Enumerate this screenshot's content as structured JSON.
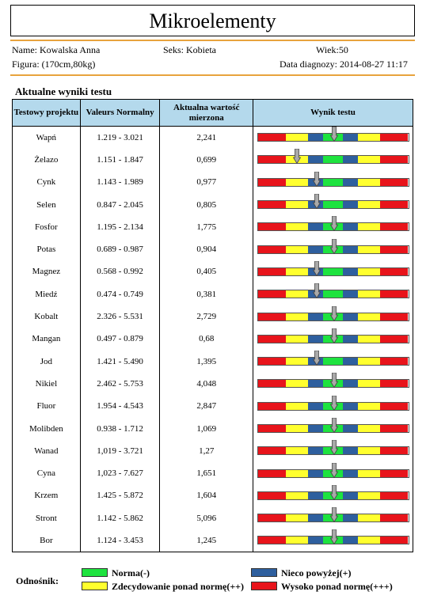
{
  "header": {
    "title": "Mikroelementy",
    "name": "Name: Kowalska Anna",
    "sex": "Seks: Kobieta",
    "age": "Wiek:50",
    "figure": "Figura: (170cm,80kg)",
    "diagnosis_date": "Data diagnozy: 2014-08-27 11:17"
  },
  "section_title": "Aktualne wyniki testu",
  "table": {
    "headers": [
      "Testowy projektu",
      "Valeurs Normalny",
      "Aktualna wartość mierzona",
      "Wynik testu"
    ],
    "rows": [
      {
        "name": "Wapń",
        "range": "1.219 - 3.021",
        "value": "2,241",
        "marker": 0.51
      },
      {
        "name": "Żelazo",
        "range": "1.151 - 1.847",
        "value": "0,699",
        "marker": 0.26
      },
      {
        "name": "Cynk",
        "range": "1.143 - 1.989",
        "value": "0,977",
        "marker": 0.39
      },
      {
        "name": "Selen",
        "range": "0.847 - 2.045",
        "value": "0,805",
        "marker": 0.39
      },
      {
        "name": "Fosfor",
        "range": "1.195 - 2.134",
        "value": "1,775",
        "marker": 0.51
      },
      {
        "name": "Potas",
        "range": "0.689 - 0.987",
        "value": "0,904",
        "marker": 0.51
      },
      {
        "name": "Magnez",
        "range": "0.568 - 0.992",
        "value": "0,405",
        "marker": 0.39
      },
      {
        "name": "Miedź",
        "range": "0.474 - 0.749",
        "value": "0,381",
        "marker": 0.39
      },
      {
        "name": "Kobalt",
        "range": "2.326 - 5.531",
        "value": "2,729",
        "marker": 0.51
      },
      {
        "name": "Mangan",
        "range": "0.497 - 0.879",
        "value": "0,68",
        "marker": 0.51
      },
      {
        "name": "Jod",
        "range": "1.421 - 5.490",
        "value": "1,395",
        "marker": 0.39
      },
      {
        "name": "Nikiel",
        "range": "2.462 - 5.753",
        "value": "4,048",
        "marker": 0.51
      },
      {
        "name": "Fluor",
        "range": "1.954 - 4.543",
        "value": "2,847",
        "marker": 0.51
      },
      {
        "name": "Molibden",
        "range": "0.938 - 1.712",
        "value": "1,069",
        "marker": 0.51
      },
      {
        "name": "Wanad",
        "range": "1,019 - 3.721",
        "value": "1,27",
        "marker": 0.51
      },
      {
        "name": "Cyna",
        "range": "1,023 - 7.627",
        "value": "1,651",
        "marker": 0.51
      },
      {
        "name": "Krzem",
        "range": "1.425 - 5.872",
        "value": "1,604",
        "marker": 0.51
      },
      {
        "name": "Stront",
        "range": "1.142 - 5.862",
        "value": "5,096",
        "marker": 0.51
      },
      {
        "name": "Bor",
        "range": "1.124 - 3.453",
        "value": "1,245",
        "marker": 0.51
      }
    ]
  },
  "bar_segments": [
    {
      "color": "#e8141b",
      "fraction": 0.185
    },
    {
      "color": "#ffff2e",
      "fraction": 0.15
    },
    {
      "color": "#2e5f9e",
      "fraction": 0.1
    },
    {
      "color": "#1ee33f",
      "fraction": 0.13
    },
    {
      "color": "#2e5f9e",
      "fraction": 0.1
    },
    {
      "color": "#ffff2e",
      "fraction": 0.15
    },
    {
      "color": "#e8141b",
      "fraction": 0.185
    }
  ],
  "legend": {
    "label": "Odnośnik:",
    "items": [
      {
        "text": "Norma(-)",
        "color": "#1ee33f"
      },
      {
        "text": "Nieco powyżej(+)",
        "color": "#2e5f9e"
      },
      {
        "text": "Zdecydowanie ponad normę(++)",
        "color": "#ffff2e"
      },
      {
        "text": "Wysoko ponad normę(+++)",
        "color": "#e8141b"
      }
    ]
  }
}
